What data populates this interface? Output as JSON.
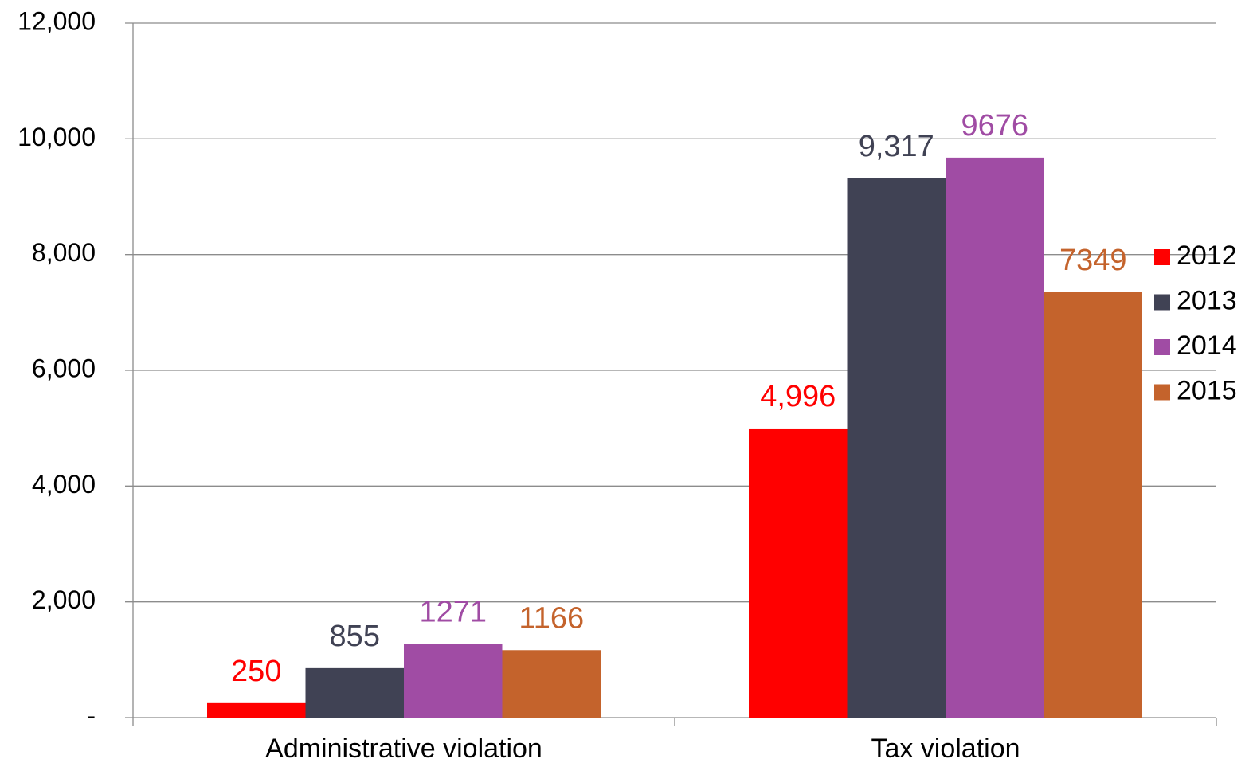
{
  "chart_data": {
    "type": "bar",
    "categories": [
      "Administrative violation",
      "Tax violation"
    ],
    "series": [
      {
        "name": "2012",
        "color": "#ff0000",
        "values": [
          250,
          4996
        ],
        "value_labels": [
          "250",
          "4,996"
        ]
      },
      {
        "name": "2013",
        "color": "#404254",
        "values": [
          855,
          9317
        ],
        "value_labels": [
          "855",
          "9,317"
        ]
      },
      {
        "name": "2014",
        "color": "#a04ca4",
        "values": [
          1271,
          9676
        ],
        "value_labels": [
          "1271",
          "9676"
        ]
      },
      {
        "name": "2015",
        "color": "#c4632c",
        "values": [
          1166,
          7349
        ],
        "value_labels": [
          "1166",
          "7349"
        ]
      }
    ],
    "ylim": [
      0,
      12000
    ],
    "yticks": [
      {
        "value": 0,
        "label": "-"
      },
      {
        "value": 2000,
        "label": "2,000"
      },
      {
        "value": 4000,
        "label": "4,000"
      },
      {
        "value": 6000,
        "label": "6,000"
      },
      {
        "value": 8000,
        "label": "8,000"
      },
      {
        "value": 10000,
        "label": "10,000"
      },
      {
        "value": 12000,
        "label": "12,000"
      }
    ],
    "grid": true,
    "legend": "right"
  }
}
